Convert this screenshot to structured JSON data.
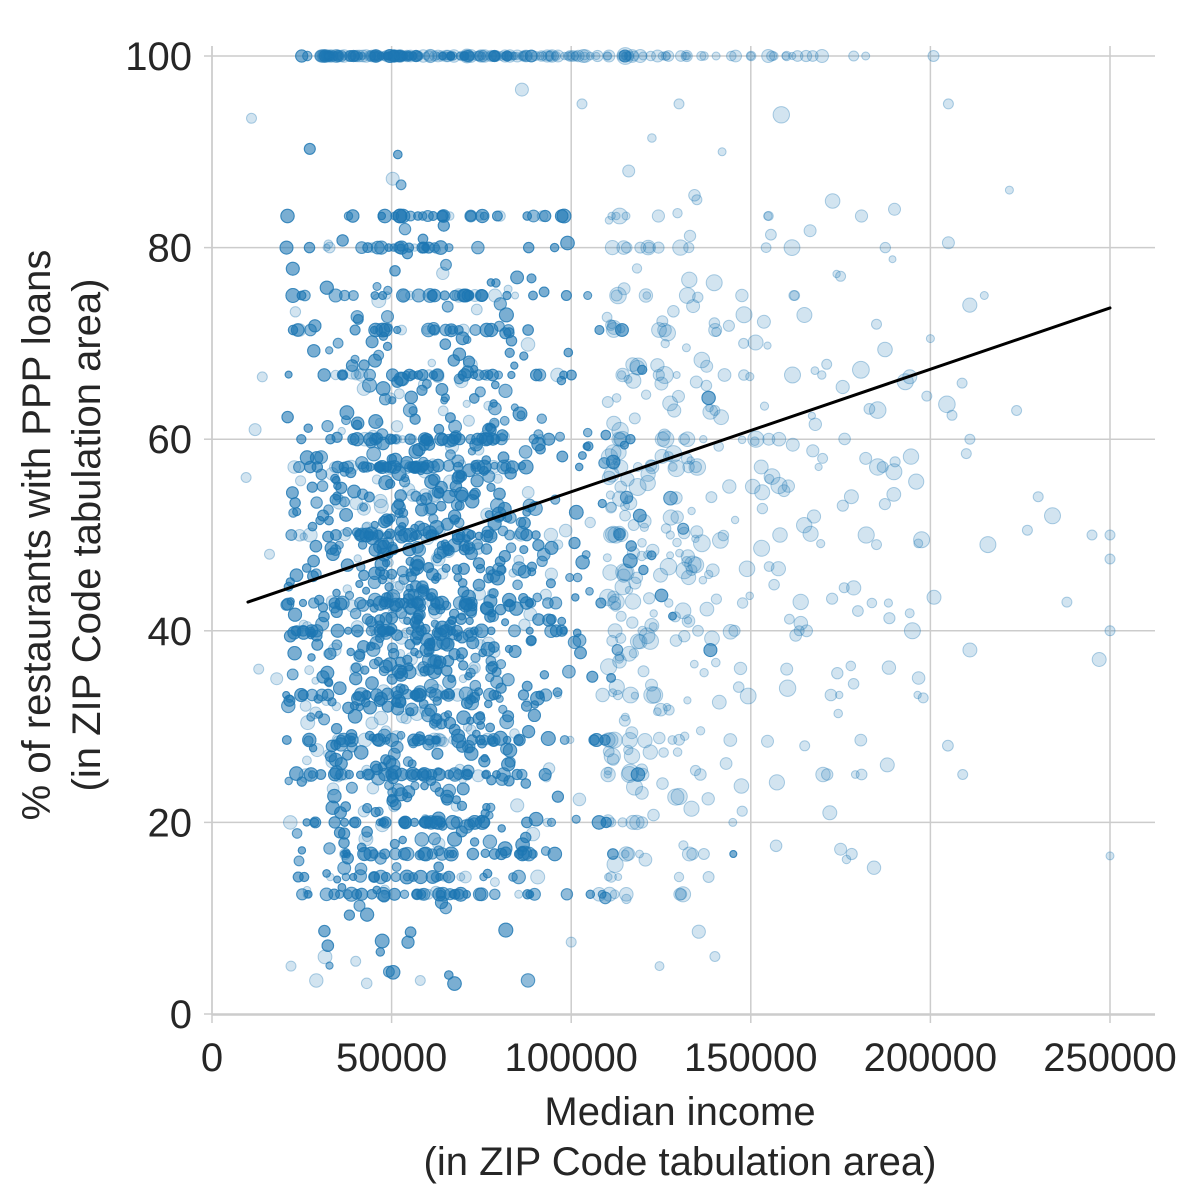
{
  "chart_data": {
    "type": "scatter",
    "xlabel": [
      "Median income",
      "(in ZIP Code tabulation area)"
    ],
    "ylabel": [
      "% of restaurants with PPP loans",
      "(in ZIP Code tabulation area)"
    ],
    "xlim": [
      0,
      262000
    ],
    "ylim": [
      0,
      100
    ],
    "x_ticks": [
      0,
      50000,
      100000,
      150000,
      200000,
      250000
    ],
    "x_tick_labels": [
      "0",
      "50000",
      "100000",
      "150000",
      "200000",
      "250000"
    ],
    "y_ticks": [
      0,
      20,
      40,
      60,
      80,
      100
    ],
    "y_tick_labels": [
      "0",
      "20",
      "40",
      "60",
      "80",
      "100"
    ],
    "grid": true,
    "point_color": "#1f77b4",
    "point_alpha": 0.2,
    "line_color": "#000000",
    "regression_line": {
      "x": [
        10000,
        250000
      ],
      "y": [
        43,
        73.7
      ]
    },
    "points": [
      [
        62000,
        100,
        5
      ],
      [
        71000,
        100,
        7
      ],
      [
        85000,
        100,
        6
      ],
      [
        120000,
        100,
        4
      ],
      [
        150000,
        100,
        4
      ],
      [
        182000,
        100,
        4
      ],
      [
        11000,
        93.5,
        5
      ],
      [
        205000,
        95,
        5
      ],
      [
        130000,
        95,
        5
      ],
      [
        190000,
        84,
        6
      ],
      [
        222000,
        86,
        4
      ],
      [
        205000,
        80.5,
        6
      ],
      [
        215000,
        75,
        4
      ],
      [
        185000,
        72,
        5
      ],
      [
        200000,
        70.5,
        4
      ],
      [
        193000,
        66,
        8
      ],
      [
        199000,
        64.5,
        5
      ],
      [
        206000,
        62.5,
        5
      ],
      [
        211000,
        60,
        5
      ],
      [
        210000,
        58.5,
        5
      ],
      [
        224000,
        63,
        5
      ],
      [
        230000,
        54,
        5
      ],
      [
        234000,
        52,
        8
      ],
      [
        227000,
        50.5,
        5
      ],
      [
        216000,
        49,
        8
      ],
      [
        245000,
        50,
        5
      ],
      [
        250000,
        50,
        5
      ],
      [
        250000,
        47.5,
        5
      ],
      [
        238000,
        43,
        5
      ],
      [
        247000,
        37,
        7
      ],
      [
        250000,
        40,
        5
      ],
      [
        250000,
        16.5,
        4
      ],
      [
        201000,
        43.5,
        7
      ],
      [
        195000,
        40,
        8
      ],
      [
        211000,
        38,
        7
      ],
      [
        188000,
        26,
        7
      ],
      [
        209000,
        25,
        5
      ],
      [
        175000,
        17.2,
        6
      ],
      [
        172000,
        21,
        7
      ],
      [
        140000,
        6,
        5
      ],
      [
        145000,
        20,
        4
      ],
      [
        58000,
        3.5,
        5
      ],
      [
        22000,
        5,
        5
      ],
      [
        40000,
        5.5,
        5
      ],
      [
        100000,
        7.5,
        5
      ],
      [
        18000,
        35,
        6
      ],
      [
        13000,
        36,
        5
      ],
      [
        9500,
        56,
        5
      ],
      [
        12000,
        61,
        6
      ],
      [
        14000,
        66.5,
        5
      ],
      [
        16000,
        48,
        5
      ],
      [
        178000,
        54,
        7
      ],
      [
        170000,
        58,
        5
      ],
      [
        182000,
        58,
        6
      ],
      [
        160000,
        36,
        6
      ],
      [
        165000,
        28,
        5
      ],
      [
        155000,
        60,
        6
      ],
      [
        140000,
        63,
        5
      ],
      [
        148000,
        70,
        5
      ],
      [
        162000,
        75,
        5
      ],
      [
        175000,
        77,
        5
      ],
      [
        135000,
        85,
        5
      ],
      [
        142000,
        90,
        4
      ],
      [
        116000,
        88,
        6
      ],
      [
        103000,
        95,
        5
      ],
      [
        198000,
        33,
        5
      ],
      [
        185000,
        49,
        5
      ],
      [
        176000,
        44.5,
        5
      ]
    ]
  }
}
